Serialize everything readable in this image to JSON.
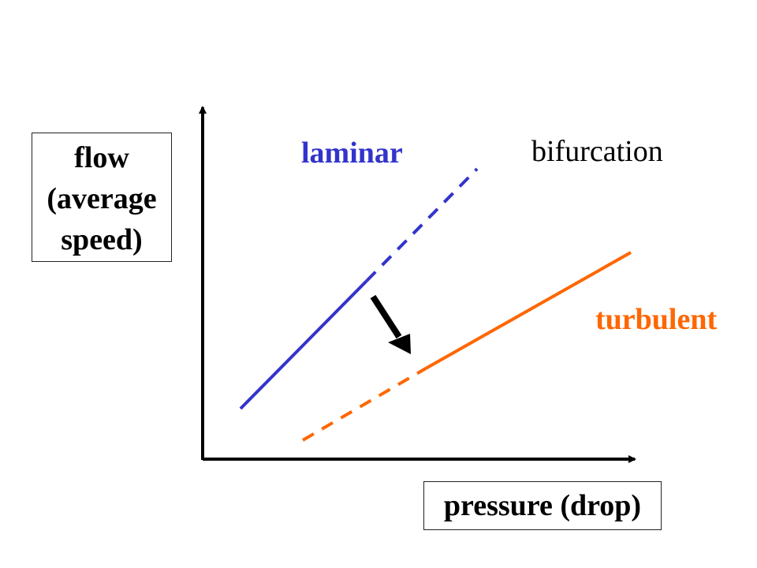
{
  "diagram": {
    "ylabel_lines": [
      "flow",
      "(average",
      "speed)"
    ],
    "xlabel": "pressure (drop)",
    "labels": {
      "laminar": "laminar",
      "bifurcation": "bifurcation",
      "turbulent": "turbulent"
    },
    "colors": {
      "laminar": "#3333cc",
      "turbulent": "#ff6600",
      "axes": "#000000",
      "arrow": "#000000",
      "text": "#000000"
    }
  }
}
